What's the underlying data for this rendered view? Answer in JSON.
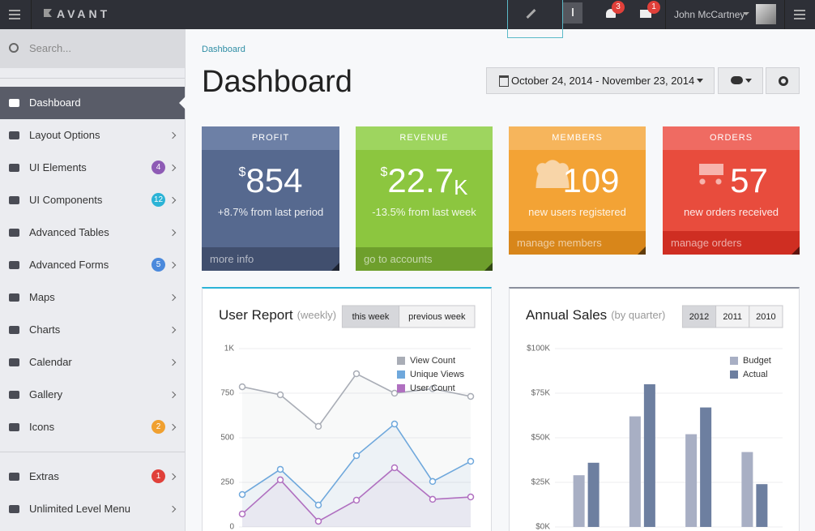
{
  "topbar": {
    "brand": "AVANT",
    "user": "John McCartney",
    "notifications": "3",
    "messages": "1"
  },
  "sidebar": {
    "search_placeholder": "Search...",
    "items": [
      {
        "label": "Dashboard"
      },
      {
        "label": "Layout Options"
      },
      {
        "label": "UI Elements",
        "badge": "4"
      },
      {
        "label": "UI Components",
        "badge": "12"
      },
      {
        "label": "Advanced Tables"
      },
      {
        "label": "Advanced Forms",
        "badge": "5"
      },
      {
        "label": "Maps"
      },
      {
        "label": "Charts"
      },
      {
        "label": "Calendar"
      },
      {
        "label": "Gallery"
      },
      {
        "label": "Icons",
        "badge": "2"
      },
      {
        "label": "Extras",
        "badge": "1"
      },
      {
        "label": "Unlimited Level Menu"
      }
    ]
  },
  "breadcrumb": "Dashboard",
  "page_title": "Dashboard",
  "date_range": "October 24, 2014 - November 23, 2014",
  "stats": [
    {
      "title": "PROFIT",
      "prefix": "$",
      "value": 854,
      "description": "+8.7% from last period",
      "link": "more info"
    },
    {
      "title": "REVENUE",
      "prefix": "$",
      "value": 22.7,
      "suffix": "K",
      "description": "-13.5% from last week",
      "link": "go to accounts"
    },
    {
      "title": "MEMBERS",
      "value": 109,
      "description": "new users registered",
      "link": "manage members"
    },
    {
      "title": "ORDERS",
      "value": 57,
      "description": "new orders received",
      "link": "manage orders"
    }
  ],
  "chart_data": [
    {
      "type": "line",
      "title": "User Report",
      "subtitle": "(weekly)",
      "buttons": [
        "this week",
        "previous week"
      ],
      "categories": [
        null,
        null,
        null,
        null,
        null,
        null,
        null
      ],
      "series": [
        {
          "name": "View Count",
          "color": "#a9adb6",
          "values": [
            786,
            741,
            564,
            859,
            750,
            775,
            732
          ]
        },
        {
          "name": "Unique Views",
          "color": "#6fa8dc",
          "values": [
            182,
            323,
            123,
            400,
            577,
            255,
            368
          ]
        },
        {
          "name": "User Count",
          "color": "#b070c0",
          "values": [
            73,
            264,
            32,
            150,
            332,
            155,
            168
          ]
        }
      ],
      "ylim": [
        0,
        1000
      ],
      "yticks": [
        0,
        250,
        500,
        750,
        {
          "value": 1000,
          "label": "1K"
        }
      ],
      "grid": true,
      "legend": "top-right"
    },
    {
      "type": "bar",
      "title": "Annual Sales",
      "subtitle": "(by quarter)",
      "buttons": [
        "2012",
        "2011",
        "2010"
      ],
      "categories": [
        null,
        null,
        null,
        null
      ],
      "series": [
        {
          "name": "Budget",
          "color": "#a8afc4",
          "values": [
            29000,
            62000,
            52000,
            42000
          ]
        },
        {
          "name": "Actual",
          "color": "#6d7fa0",
          "values": [
            36000,
            80000,
            67000,
            24000
          ]
        }
      ],
      "ylim": [
        0,
        100000
      ],
      "yticks": [
        {
          "value": 0,
          "label": "$0K"
        },
        {
          "value": 25000,
          "label": "$25K"
        },
        {
          "value": 50000,
          "label": "$50K"
        },
        {
          "value": 75000,
          "label": "$75K"
        },
        {
          "value": 100000,
          "label": "$100K"
        }
      ],
      "grid": true,
      "legend": "top-right"
    }
  ]
}
